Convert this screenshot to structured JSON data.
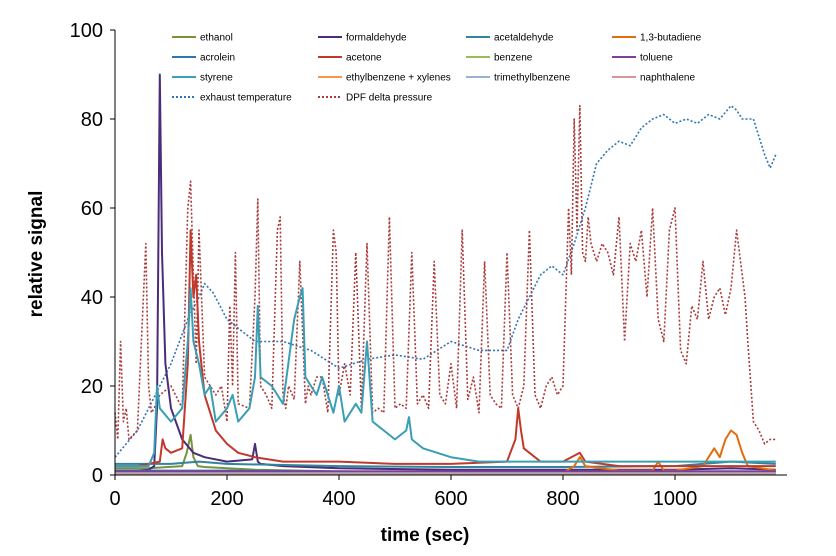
{
  "chart_data": {
    "type": "line",
    "title": "",
    "xlabel": "time (sec)",
    "ylabel": "relative signal",
    "xlim": [
      0,
      1200
    ],
    "ylim": [
      0,
      100
    ],
    "xticks": [
      0,
      200,
      400,
      600,
      800,
      1000
    ],
    "yticks": [
      0,
      20,
      40,
      60,
      80,
      100
    ],
    "grid": false,
    "legend_position": "top",
    "series": [
      {
        "name": "ethanol",
        "color": "#77933C",
        "style": "solid",
        "x": [
          0,
          60,
          120,
          128,
          135,
          140,
          148,
          160,
          250,
          400,
          700,
          1000,
          1180
        ],
        "y": [
          1.5,
          1.5,
          2,
          5,
          9,
          4,
          2,
          1.8,
          1.2,
          0.8,
          0.5,
          0.5,
          0.5
        ]
      },
      {
        "name": "formaldehyde",
        "color": "#4B2C7A",
        "style": "solid",
        "x": [
          0,
          40,
          60,
          70,
          75,
          78,
          80,
          84,
          90,
          100,
          120,
          140,
          160,
          200,
          245,
          250,
          255,
          260,
          300,
          400,
          600,
          800,
          1000,
          1100,
          1180
        ],
        "y": [
          1,
          1,
          1.2,
          2,
          15,
          60,
          90,
          50,
          25,
          15,
          8,
          5,
          4,
          3,
          3.5,
          7,
          3,
          2.5,
          2,
          1.5,
          1.2,
          1.2,
          1.2,
          1.5,
          1.2
        ]
      },
      {
        "name": "acetaldehyde",
        "color": "#31849B",
        "style": "solid",
        "x": [
          0,
          100,
          150,
          200,
          400,
          600,
          800,
          1000,
          1100,
          1180
        ],
        "y": [
          2.5,
          2.5,
          3,
          2.5,
          2,
          1.8,
          1.8,
          2,
          3,
          2.5
        ]
      },
      {
        "name": "1,3-butadiene",
        "color": "#E46C0A",
        "style": "solid",
        "x": [
          0,
          500,
          800,
          820,
          830,
          840,
          900,
          960,
          970,
          980,
          1000,
          1050,
          1070,
          1080,
          1090,
          1100,
          1110,
          1120,
          1130,
          1180
        ],
        "y": [
          0.5,
          0.5,
          0.5,
          2,
          4,
          2,
          1,
          1,
          3,
          1,
          1,
          2,
          6,
          4,
          8,
          10,
          9,
          5,
          2,
          1
        ]
      },
      {
        "name": "acrolein",
        "color": "#2E75B6",
        "style": "solid",
        "x": [
          0,
          100,
          200,
          400,
          600,
          800,
          1000,
          1180
        ],
        "y": [
          1,
          1,
          1,
          0.8,
          0.8,
          0.8,
          0.8,
          0.8
        ]
      },
      {
        "name": "acetone",
        "color": "#C0392B",
        "style": "solid",
        "x": [
          0,
          40,
          80,
          85,
          90,
          100,
          120,
          130,
          135,
          140,
          145,
          150,
          160,
          180,
          200,
          220,
          250,
          300,
          400,
          500,
          600,
          700,
          715,
          720,
          725,
          730,
          740,
          760,
          800,
          830,
          840,
          900,
          1000,
          1100,
          1180
        ],
        "y": [
          2,
          2,
          3,
          8,
          6,
          5,
          6,
          25,
          55,
          40,
          45,
          30,
          18,
          10,
          7,
          5,
          4,
          3,
          3,
          2.5,
          2.5,
          3,
          8,
          15,
          10,
          6,
          5,
          3,
          3,
          5,
          3,
          2,
          2,
          2,
          2
        ]
      },
      {
        "name": "benzene",
        "color": "#9BBB59",
        "style": "solid",
        "x": [
          0,
          600,
          1180
        ],
        "y": [
          0.5,
          0.5,
          0.5
        ]
      },
      {
        "name": "toluene",
        "color": "#7E3F98",
        "style": "solid",
        "x": [
          0,
          200,
          400,
          600,
          800,
          1000,
          1180
        ],
        "y": [
          0.8,
          0.8,
          0.8,
          0.8,
          0.8,
          0.8,
          0.8
        ]
      },
      {
        "name": "styrene",
        "color": "#3A9EB5",
        "style": "solid",
        "x": [
          0,
          60,
          70,
          75,
          80,
          100,
          120,
          130,
          135,
          140,
          150,
          160,
          170,
          180,
          200,
          210,
          220,
          240,
          250,
          255,
          260,
          280,
          300,
          320,
          330,
          335,
          340,
          350,
          360,
          370,
          390,
          400,
          410,
          430,
          440,
          450,
          460,
          480,
          500,
          520,
          525,
          530,
          550,
          600,
          650,
          700,
          800,
          900,
          1000,
          1100,
          1180
        ],
        "y": [
          2,
          2,
          5,
          20,
          15,
          12,
          15,
          30,
          42,
          30,
          25,
          18,
          20,
          12,
          15,
          18,
          12,
          15,
          22,
          38,
          22,
          20,
          16,
          35,
          40,
          42,
          22,
          20,
          18,
          22,
          14,
          20,
          12,
          16,
          14,
          30,
          12,
          10,
          8,
          10,
          13,
          8,
          6,
          4,
          3,
          3,
          3,
          3,
          3,
          3,
          3
        ]
      },
      {
        "name": "ethylbenzene + xylenes",
        "color": "#F79646",
        "style": "solid",
        "x": [
          0,
          600,
          1180
        ],
        "y": [
          0.3,
          0.3,
          0.3
        ]
      },
      {
        "name": "trimethylbenzene",
        "color": "#95B3D7",
        "style": "solid",
        "x": [
          0,
          600,
          1180
        ],
        "y": [
          0.4,
          0.4,
          0.4
        ]
      },
      {
        "name": "naphthalene",
        "color": "#D99594",
        "style": "solid",
        "x": [
          0,
          600,
          1180
        ],
        "y": [
          0.2,
          0.2,
          0.2
        ]
      },
      {
        "name": "exhaust temperature",
        "color": "#2E75B6",
        "style": "dotted",
        "x": [
          0,
          40,
          80,
          100,
          130,
          150,
          160,
          175,
          200,
          250,
          300,
          350,
          400,
          450,
          500,
          550,
          600,
          650,
          700,
          720,
          740,
          760,
          780,
          800,
          820,
          840,
          860,
          880,
          900,
          920,
          940,
          960,
          980,
          1000,
          1020,
          1040,
          1060,
          1080,
          1100,
          1110,
          1120,
          1140,
          1160,
          1170,
          1180
        ],
        "y": [
          4,
          10,
          20,
          25,
          35,
          40,
          43,
          41,
          35,
          30,
          30,
          28,
          24,
          26,
          27,
          26,
          30,
          28,
          28,
          35,
          40,
          45,
          47,
          45,
          52,
          60,
          70,
          73,
          75,
          74,
          78,
          80,
          81,
          79,
          80,
          79,
          81,
          80,
          83,
          82,
          80,
          80,
          72,
          69,
          72
        ]
      },
      {
        "name": "DPF delta pressure",
        "color": "#A93A3A",
        "style": "dotted",
        "x": [
          0,
          5,
          10,
          15,
          20,
          25,
          40,
          55,
          60,
          65,
          70,
          80,
          100,
          120,
          130,
          135,
          140,
          145,
          150,
          160,
          170,
          180,
          190,
          200,
          205,
          210,
          215,
          220,
          240,
          250,
          255,
          260,
          270,
          280,
          290,
          295,
          300,
          305,
          310,
          320,
          330,
          340,
          345,
          350,
          360,
          370,
          380,
          390,
          395,
          400,
          410,
          420,
          430,
          440,
          450,
          460,
          470,
          480,
          490,
          500,
          510,
          520,
          530,
          540,
          550,
          560,
          570,
          580,
          590,
          600,
          610,
          620,
          630,
          640,
          650,
          660,
          670,
          680,
          690,
          700,
          710,
          720,
          730,
          740,
          750,
          760,
          770,
          780,
          790,
          800,
          810,
          815,
          820,
          825,
          830,
          835,
          840,
          845,
          850,
          860,
          870,
          880,
          890,
          900,
          910,
          920,
          930,
          940,
          950,
          960,
          970,
          980,
          990,
          1000,
          1010,
          1020,
          1030,
          1040,
          1050,
          1060,
          1070,
          1080,
          1090,
          1100,
          1110,
          1115,
          1120,
          1125,
          1130,
          1140,
          1150,
          1160,
          1170,
          1180
        ],
        "y": [
          14,
          8,
          30,
          12,
          15,
          8,
          10,
          52,
          20,
          14,
          15,
          18,
          20,
          15,
          60,
          66,
          45,
          25,
          55,
          22,
          20,
          18,
          20,
          12,
          38,
          20,
          50,
          16,
          15,
          40,
          62,
          20,
          18,
          15,
          55,
          58,
          18,
          15,
          20,
          17,
          48,
          16,
          20,
          18,
          22,
          22,
          14,
          55,
          50,
          18,
          25,
          18,
          50,
          15,
          52,
          14,
          15,
          14,
          58,
          15,
          16,
          15,
          50,
          16,
          18,
          15,
          48,
          18,
          16,
          25,
          15,
          55,
          17,
          22,
          14,
          48,
          18,
          16,
          15,
          50,
          18,
          15,
          20,
          55,
          18,
          15,
          20,
          22,
          18,
          20,
          60,
          45,
          80,
          55,
          83,
          50,
          48,
          58,
          52,
          48,
          52,
          50,
          45,
          58,
          30,
          52,
          48,
          55,
          40,
          60,
          35,
          30,
          55,
          60,
          28,
          25,
          38,
          35,
          48,
          35,
          40,
          42,
          36,
          42,
          55,
          50,
          45,
          40,
          30,
          12,
          10,
          7,
          8,
          8
        ]
      }
    ]
  }
}
